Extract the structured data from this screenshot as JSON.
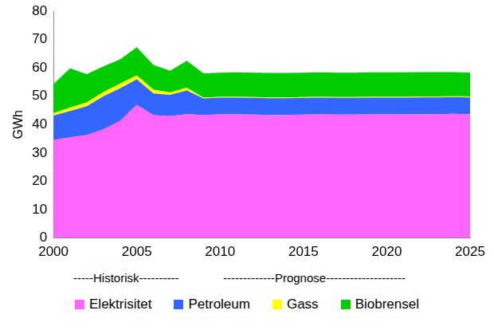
{
  "chart_data": {
    "type": "area",
    "stacked": true,
    "y_label": "GWh",
    "x": [
      2000,
      2001,
      2002,
      2003,
      2004,
      2005,
      2006,
      2007,
      2008,
      2009,
      2010,
      2011,
      2012,
      2013,
      2014,
      2015,
      2016,
      2017,
      2018,
      2019,
      2020,
      2021,
      2022,
      2023,
      2024,
      2025
    ],
    "xlim": [
      2000,
      2025
    ],
    "xticks": [
      2000,
      2005,
      2010,
      2015,
      2020,
      2025
    ],
    "ylim": [
      0,
      80
    ],
    "yticks": [
      0,
      10,
      20,
      30,
      40,
      50,
      60,
      70,
      80
    ],
    "grid": false,
    "legend": "bottom",
    "annotations": [
      "-----Historisk----------",
      "-------------Prognose--------------------"
    ],
    "series": [
      {
        "name": "Elektrisitet",
        "color": "#ff66ff",
        "values": [
          34.5,
          35.5,
          36.3,
          38.3,
          41.3,
          47.0,
          43.3,
          43.0,
          43.7,
          43.4,
          43.6,
          43.6,
          43.5,
          43.4,
          43.4,
          43.5,
          43.6,
          43.5,
          43.5,
          43.6,
          43.6,
          43.6,
          43.7,
          43.7,
          43.8,
          43.7
        ]
      },
      {
        "name": "Petroleum",
        "color": "#3366ff",
        "values": [
          8.7,
          9.3,
          10.2,
          11.7,
          11.5,
          9.0,
          7.7,
          7.5,
          8.3,
          5.8,
          5.9,
          5.9,
          5.9,
          5.9,
          5.9,
          5.9,
          5.9,
          5.9,
          5.9,
          5.9,
          5.9,
          5.9,
          5.9,
          5.9,
          5.9,
          5.9
        ]
      },
      {
        "name": "Gass",
        "color": "#ffff00",
        "values": [
          0.8,
          1.2,
          1.3,
          1.5,
          1.6,
          1.4,
          1.3,
          0.8,
          1.0,
          0.3,
          0.3,
          0.3,
          0.3,
          0.3,
          0.3,
          0.3,
          0.3,
          0.3,
          0.3,
          0.3,
          0.3,
          0.3,
          0.3,
          0.3,
          0.3,
          0.3
        ]
      },
      {
        "name": "Biobrensel",
        "color": "#00cc00",
        "values": [
          10.3,
          13.8,
          10.0,
          9.0,
          8.6,
          9.9,
          8.7,
          7.7,
          9.5,
          8.6,
          8.5,
          8.6,
          8.6,
          8.6,
          8.6,
          8.6,
          8.6,
          8.6,
          8.6,
          8.6,
          8.6,
          8.6,
          8.6,
          8.6,
          8.5,
          8.4
        ]
      }
    ]
  }
}
